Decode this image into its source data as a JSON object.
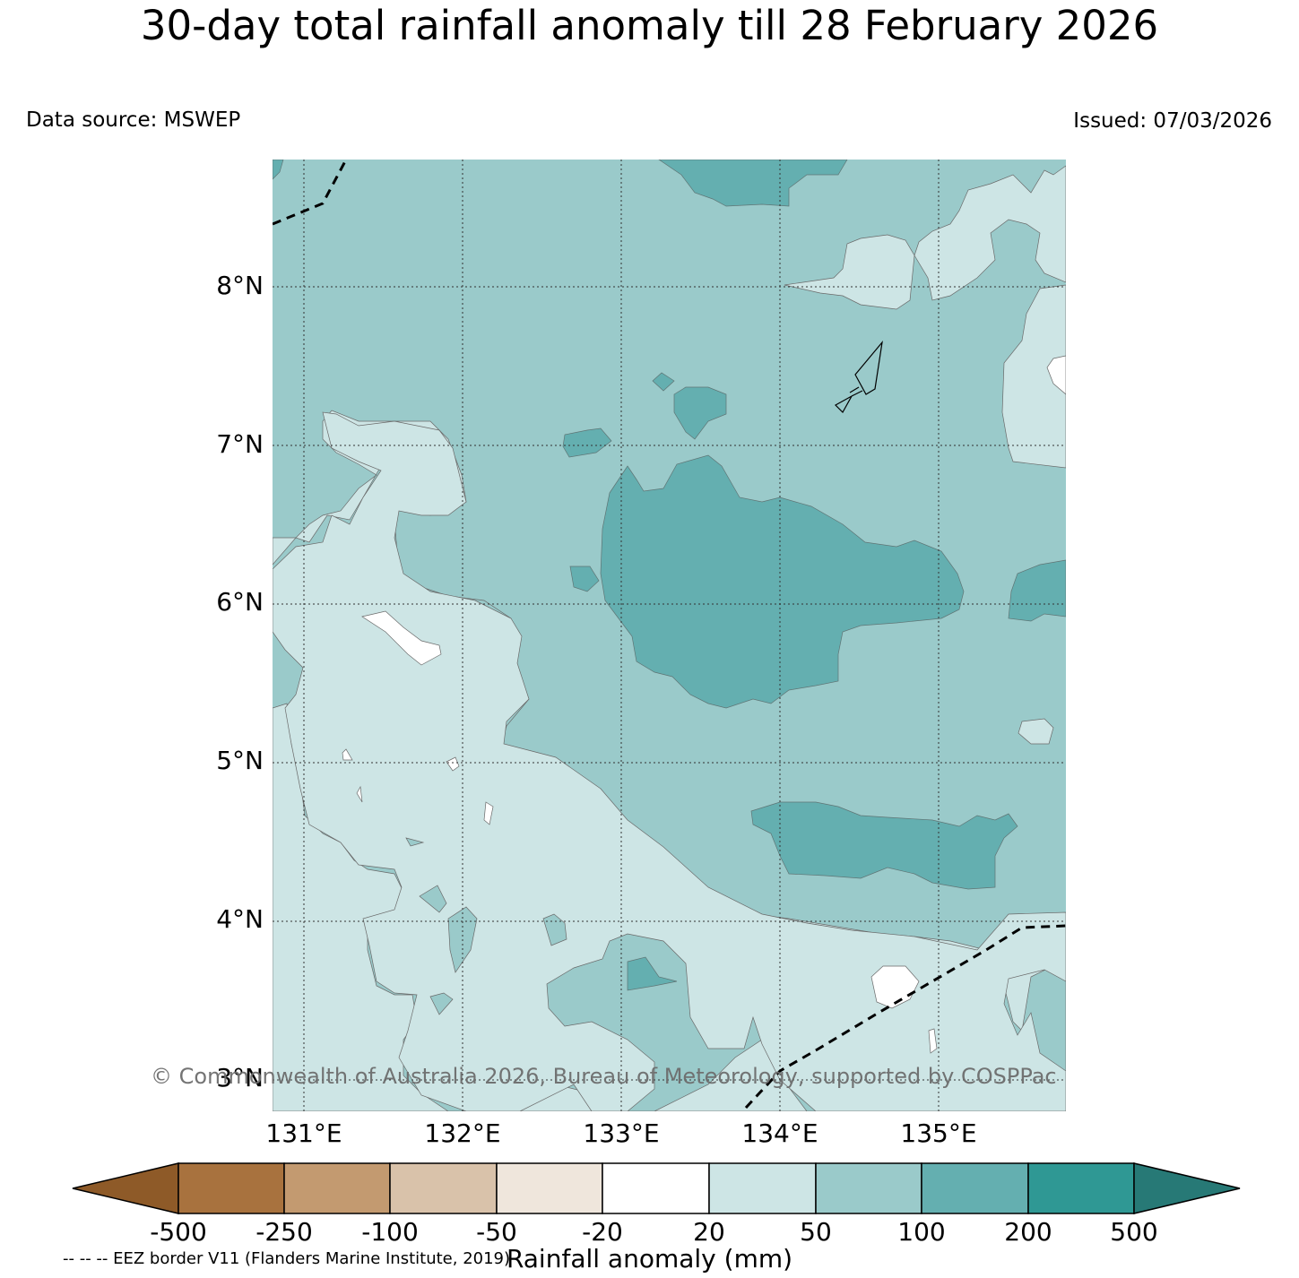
{
  "title": "30-day total rainfall anomaly till 28 February 2026",
  "data_source": "Data source: MSWEP",
  "issued": "Issued: 07/03/2026",
  "copyright": "© Commonwealth of Australia 2026, Bureau of Meteorology, supported by COSPPac",
  "eez_note": "-- -- -- EEZ border V11 (Flanders Marine Institute, 2019)",
  "map": {
    "lat_labels": [
      "8°N",
      "7°N",
      "6°N",
      "5°N",
      "4°N",
      "3°N"
    ],
    "lon_labels": [
      "131°E",
      "132°E",
      "133°E",
      "134°E",
      "135°E"
    ]
  },
  "colorbar": {
    "label": "Rainfall anomaly (mm)",
    "ticks": [
      "-500",
      "-250",
      "-100",
      "-50",
      "-20",
      "20",
      "50",
      "100",
      "200",
      "500"
    ],
    "colors": {
      "below_min": "#8e5a28",
      "c1": "#a8723e",
      "c2": "#c39a70",
      "c3": "#d9c2aa",
      "c4": "#efe6dc",
      "c5": "#ffffff",
      "c6": "#cde5e5",
      "c7": "#9acaca",
      "c8": "#64afb0",
      "c9": "#2f9894",
      "above_max": "#277976"
    }
  }
}
